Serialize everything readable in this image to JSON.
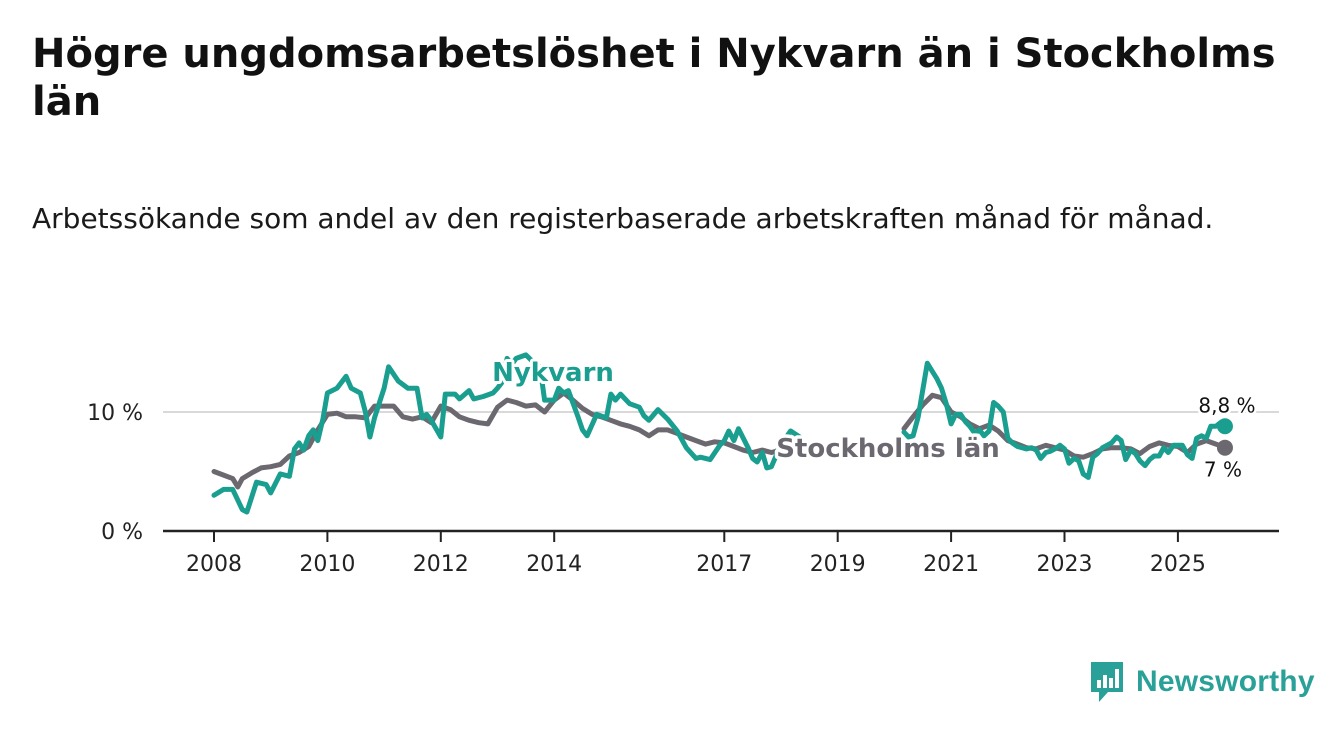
{
  "title": "Högre ungdomsarbetslöshet i Nykvarn än i Stockholms län",
  "subtitle": "Arbetssökande som andel av den registerbaserade arbetskraften månad för månad.",
  "brand": {
    "name": "Newsworthy",
    "icon": "bar-chart-logo-icon",
    "color": "#2aa198"
  },
  "chart_data": {
    "type": "line",
    "title": "Högre ungdomsarbetslöshet i Nykvarn än i Stockholms län",
    "xlabel": "",
    "ylabel": "",
    "x_unit": "year",
    "xlim": [
      2007.5,
      2026.5
    ],
    "ylim": [
      0,
      15
    ],
    "grid": "horizontal",
    "y_ticks": [
      0,
      10
    ],
    "y_tick_labels": [
      "0 %",
      "10 %"
    ],
    "x_ticks": [
      2008,
      2010,
      2012,
      2014,
      2017,
      2019,
      2021,
      2023,
      2025
    ],
    "x_tick_labels": [
      "2008",
      "2010",
      "2012",
      "2014",
      "2017",
      "2019",
      "2021",
      "2023",
      "2025"
    ],
    "series": [
      {
        "name": "Nykvarn",
        "color": "#1a9e8f",
        "end_label": "8,8 %",
        "points": [
          [
            2008.0,
            3.0
          ],
          [
            2008.17,
            3.5
          ],
          [
            2008.33,
            3.5
          ],
          [
            2008.5,
            1.8
          ],
          [
            2008.58,
            1.6
          ],
          [
            2008.75,
            4.1
          ],
          [
            2008.92,
            3.9
          ],
          [
            2009.0,
            3.2
          ],
          [
            2009.17,
            4.8
          ],
          [
            2009.33,
            4.6
          ],
          [
            2009.42,
            6.9
          ],
          [
            2009.5,
            7.4
          ],
          [
            2009.58,
            6.8
          ],
          [
            2009.67,
            8.0
          ],
          [
            2009.75,
            8.5
          ],
          [
            2009.83,
            7.6
          ],
          [
            2009.92,
            9.4
          ],
          [
            2010.0,
            11.6
          ],
          [
            2010.17,
            12.0
          ],
          [
            2010.33,
            13.0
          ],
          [
            2010.42,
            12.0
          ],
          [
            2010.58,
            11.6
          ],
          [
            2010.67,
            10.0
          ],
          [
            2010.75,
            7.9
          ],
          [
            2010.83,
            9.5
          ],
          [
            2011.0,
            12.0
          ],
          [
            2011.08,
            13.8
          ],
          [
            2011.25,
            12.6
          ],
          [
            2011.42,
            12.0
          ],
          [
            2011.58,
            12.0
          ],
          [
            2011.67,
            9.5
          ],
          [
            2011.75,
            9.8
          ],
          [
            2011.83,
            9.3
          ],
          [
            2012.0,
            7.9
          ],
          [
            2012.08,
            11.5
          ],
          [
            2012.25,
            11.5
          ],
          [
            2012.33,
            11.1
          ],
          [
            2012.5,
            11.8
          ],
          [
            2012.58,
            11.1
          ],
          [
            2012.75,
            11.3
          ],
          [
            2012.92,
            11.6
          ],
          [
            2013.0,
            12.0
          ],
          [
            2013.08,
            12.5
          ],
          [
            2013.17,
            14.5
          ],
          [
            2013.25,
            14.0
          ],
          [
            2013.33,
            14.5
          ],
          [
            2013.5,
            14.8
          ],
          [
            2013.67,
            14.0
          ],
          [
            2013.75,
            13.8
          ],
          [
            2013.83,
            11.0
          ],
          [
            2014.0,
            11.0
          ],
          [
            2014.08,
            12.0
          ],
          [
            2014.17,
            11.6
          ],
          [
            2014.25,
            11.8
          ],
          [
            2014.42,
            9.6
          ],
          [
            2014.5,
            8.5
          ],
          [
            2014.58,
            8.0
          ],
          [
            2014.75,
            9.8
          ],
          [
            2014.92,
            9.5
          ],
          [
            2015.0,
            11.5
          ],
          [
            2015.08,
            11.0
          ],
          [
            2015.17,
            11.5
          ],
          [
            2015.33,
            10.7
          ],
          [
            2015.5,
            10.4
          ],
          [
            2015.58,
            9.7
          ],
          [
            2015.67,
            9.3
          ],
          [
            2015.83,
            10.2
          ],
          [
            2016.0,
            9.4
          ],
          [
            2016.17,
            8.4
          ],
          [
            2016.33,
            7.0
          ],
          [
            2016.5,
            6.1
          ],
          [
            2016.58,
            6.2
          ],
          [
            2016.75,
            6.0
          ],
          [
            2016.92,
            7.2
          ],
          [
            2017.0,
            7.6
          ],
          [
            2017.08,
            8.4
          ],
          [
            2017.17,
            7.6
          ],
          [
            2017.25,
            8.6
          ],
          [
            2017.42,
            7.0
          ],
          [
            2017.5,
            6.1
          ],
          [
            2017.58,
            5.8
          ],
          [
            2017.67,
            6.6
          ],
          [
            2017.75,
            5.3
          ],
          [
            2017.83,
            5.4
          ],
          [
            2017.92,
            6.4
          ],
          [
            2018.0,
            7.8
          ],
          [
            2018.08,
            7.8
          ],
          [
            2018.17,
            8.4
          ],
          [
            2018.33,
            7.9
          ]
        ],
        "points_after_gap": [
          [
            2020.17,
            8.3
          ],
          [
            2020.25,
            7.9
          ],
          [
            2020.33,
            8.0
          ],
          [
            2020.42,
            9.6
          ],
          [
            2020.58,
            14.1
          ],
          [
            2020.67,
            13.4
          ],
          [
            2020.75,
            12.8
          ],
          [
            2020.83,
            12.0
          ],
          [
            2020.92,
            10.6
          ],
          [
            2021.0,
            9.0
          ],
          [
            2021.08,
            9.8
          ],
          [
            2021.17,
            9.8
          ],
          [
            2021.25,
            9.2
          ],
          [
            2021.33,
            8.8
          ],
          [
            2021.42,
            8.2
          ],
          [
            2021.5,
            8.5
          ],
          [
            2021.58,
            8.0
          ],
          [
            2021.67,
            8.4
          ],
          [
            2021.75,
            10.8
          ],
          [
            2021.83,
            10.5
          ],
          [
            2021.92,
            10.0
          ],
          [
            2022.0,
            7.8
          ],
          [
            2022.08,
            7.4
          ],
          [
            2022.17,
            7.1
          ],
          [
            2022.25,
            7.0
          ],
          [
            2022.33,
            6.9
          ],
          [
            2022.42,
            7.0
          ],
          [
            2022.5,
            6.8
          ],
          [
            2022.58,
            6.1
          ],
          [
            2022.67,
            6.6
          ],
          [
            2022.75,
            6.7
          ],
          [
            2022.83,
            6.9
          ],
          [
            2022.92,
            7.2
          ],
          [
            2023.0,
            6.9
          ],
          [
            2023.08,
            5.7
          ],
          [
            2023.17,
            6.1
          ],
          [
            2023.25,
            5.9
          ],
          [
            2023.33,
            4.8
          ],
          [
            2023.42,
            4.5
          ],
          [
            2023.5,
            6.2
          ],
          [
            2023.58,
            6.5
          ],
          [
            2023.67,
            7.0
          ],
          [
            2023.75,
            7.2
          ],
          [
            2023.83,
            7.4
          ],
          [
            2023.92,
            7.9
          ],
          [
            2024.0,
            7.6
          ],
          [
            2024.08,
            6.0
          ],
          [
            2024.17,
            6.8
          ],
          [
            2024.25,
            6.5
          ],
          [
            2024.33,
            5.9
          ],
          [
            2024.42,
            5.5
          ],
          [
            2024.5,
            6.0
          ],
          [
            2024.58,
            6.3
          ],
          [
            2024.67,
            6.3
          ],
          [
            2024.75,
            7.0
          ],
          [
            2024.83,
            6.6
          ],
          [
            2024.92,
            7.2
          ],
          [
            2025.0,
            7.2
          ],
          [
            2025.08,
            7.2
          ],
          [
            2025.17,
            6.4
          ],
          [
            2025.25,
            6.1
          ],
          [
            2025.33,
            7.8
          ],
          [
            2025.42,
            8.0
          ],
          [
            2025.5,
            7.8
          ],
          [
            2025.58,
            8.8
          ],
          [
            2025.67,
            8.8
          ],
          [
            2025.75,
            9.1
          ],
          [
            2025.83,
            8.8
          ]
        ]
      },
      {
        "name": "Stockholms län",
        "color": "#6b6870",
        "end_label": "7 %",
        "points": [
          [
            2008.0,
            5.0
          ],
          [
            2008.17,
            4.7
          ],
          [
            2008.33,
            4.4
          ],
          [
            2008.42,
            3.7
          ],
          [
            2008.5,
            4.4
          ],
          [
            2008.67,
            4.9
          ],
          [
            2008.83,
            5.3
          ],
          [
            2009.0,
            5.4
          ],
          [
            2009.17,
            5.6
          ],
          [
            2009.33,
            6.3
          ],
          [
            2009.5,
            6.6
          ],
          [
            2009.67,
            7.1
          ],
          [
            2009.83,
            8.5
          ],
          [
            2010.0,
            9.8
          ],
          [
            2010.17,
            9.9
          ],
          [
            2010.33,
            9.6
          ],
          [
            2010.5,
            9.6
          ],
          [
            2010.67,
            9.5
          ],
          [
            2010.83,
            10.5
          ],
          [
            2011.0,
            10.5
          ],
          [
            2011.17,
            10.5
          ],
          [
            2011.33,
            9.6
          ],
          [
            2011.5,
            9.4
          ],
          [
            2011.67,
            9.6
          ],
          [
            2011.83,
            9.1
          ],
          [
            2012.0,
            10.5
          ],
          [
            2012.17,
            10.2
          ],
          [
            2012.33,
            9.6
          ],
          [
            2012.5,
            9.3
          ],
          [
            2012.67,
            9.1
          ],
          [
            2012.83,
            9.0
          ],
          [
            2013.0,
            10.4
          ],
          [
            2013.17,
            11.0
          ],
          [
            2013.33,
            10.8
          ],
          [
            2013.5,
            10.5
          ],
          [
            2013.67,
            10.6
          ],
          [
            2013.83,
            10.0
          ],
          [
            2014.0,
            11.0
          ],
          [
            2014.17,
            11.6
          ],
          [
            2014.33,
            11.0
          ],
          [
            2014.5,
            10.3
          ],
          [
            2014.67,
            9.8
          ],
          [
            2014.83,
            9.6
          ],
          [
            2015.0,
            9.3
          ],
          [
            2015.17,
            9.0
          ],
          [
            2015.33,
            8.8
          ],
          [
            2015.5,
            8.5
          ],
          [
            2015.67,
            8.0
          ],
          [
            2015.83,
            8.5
          ],
          [
            2016.0,
            8.5
          ],
          [
            2016.17,
            8.2
          ],
          [
            2016.33,
            7.9
          ],
          [
            2016.5,
            7.6
          ],
          [
            2016.67,
            7.3
          ],
          [
            2016.83,
            7.5
          ],
          [
            2017.0,
            7.4
          ],
          [
            2017.17,
            7.1
          ],
          [
            2017.33,
            6.8
          ],
          [
            2017.5,
            6.6
          ],
          [
            2017.67,
            6.8
          ],
          [
            2017.83,
            6.6
          ],
          [
            2018.0,
            6.8
          ],
          [
            2018.17,
            6.8
          ]
        ],
        "points_after_gap": [
          [
            2020.17,
            8.6
          ],
          [
            2020.33,
            9.6
          ],
          [
            2020.5,
            10.6
          ],
          [
            2020.67,
            11.4
          ],
          [
            2020.83,
            11.2
          ],
          [
            2021.0,
            10.0
          ],
          [
            2021.17,
            9.6
          ],
          [
            2021.33,
            9.0
          ],
          [
            2021.5,
            8.6
          ],
          [
            2021.67,
            8.9
          ],
          [
            2021.83,
            8.4
          ],
          [
            2022.0,
            7.6
          ],
          [
            2022.17,
            7.3
          ],
          [
            2022.33,
            7.0
          ],
          [
            2022.5,
            6.9
          ],
          [
            2022.67,
            7.2
          ],
          [
            2022.83,
            7.0
          ],
          [
            2023.0,
            6.8
          ],
          [
            2023.17,
            6.3
          ],
          [
            2023.33,
            6.2
          ],
          [
            2023.5,
            6.5
          ],
          [
            2023.67,
            6.9
          ],
          [
            2023.83,
            7.0
          ],
          [
            2024.0,
            7.0
          ],
          [
            2024.17,
            6.9
          ],
          [
            2024.33,
            6.5
          ],
          [
            2024.5,
            7.1
          ],
          [
            2024.67,
            7.4
          ],
          [
            2024.83,
            7.2
          ],
          [
            2025.0,
            7.1
          ],
          [
            2025.17,
            6.6
          ],
          [
            2025.33,
            7.3
          ],
          [
            2025.5,
            7.6
          ],
          [
            2025.67,
            7.3
          ],
          [
            2025.83,
            7.0
          ]
        ]
      }
    ]
  }
}
